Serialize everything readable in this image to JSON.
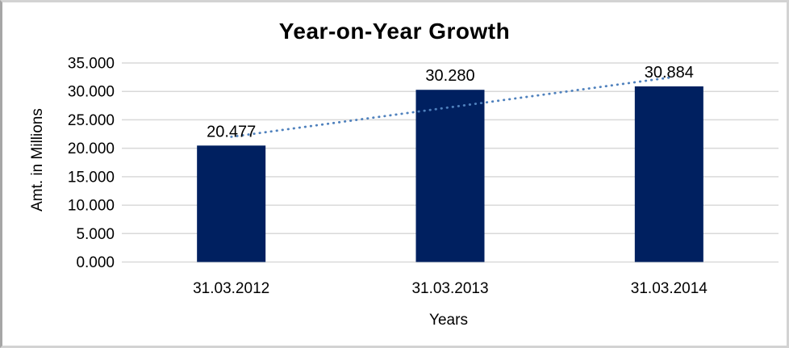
{
  "chart_data": {
    "type": "bar",
    "title": "Year-on-Year Growth",
    "xlabel": "Years",
    "ylabel": "Amt. in Millions",
    "categories": [
      "31.03.2012",
      "31.03.2013",
      "31.03.2014"
    ],
    "values": [
      20.477,
      30.28,
      30.884
    ],
    "data_labels": [
      "20.477",
      "30.280",
      "30.884"
    ],
    "ylim": [
      0,
      35
    ],
    "ytick_step": 5,
    "ytick_labels": [
      "0.000",
      "5.000",
      "10.000",
      "15.000",
      "20.000",
      "25.000",
      "30.000",
      "35.000"
    ],
    "grid": true,
    "legend": "none",
    "bar_color": "#002060",
    "gridline_color": "#d9d9d9",
    "trendline": {
      "type": "linear",
      "style": "dotted",
      "color": "#4f81bd"
    }
  }
}
